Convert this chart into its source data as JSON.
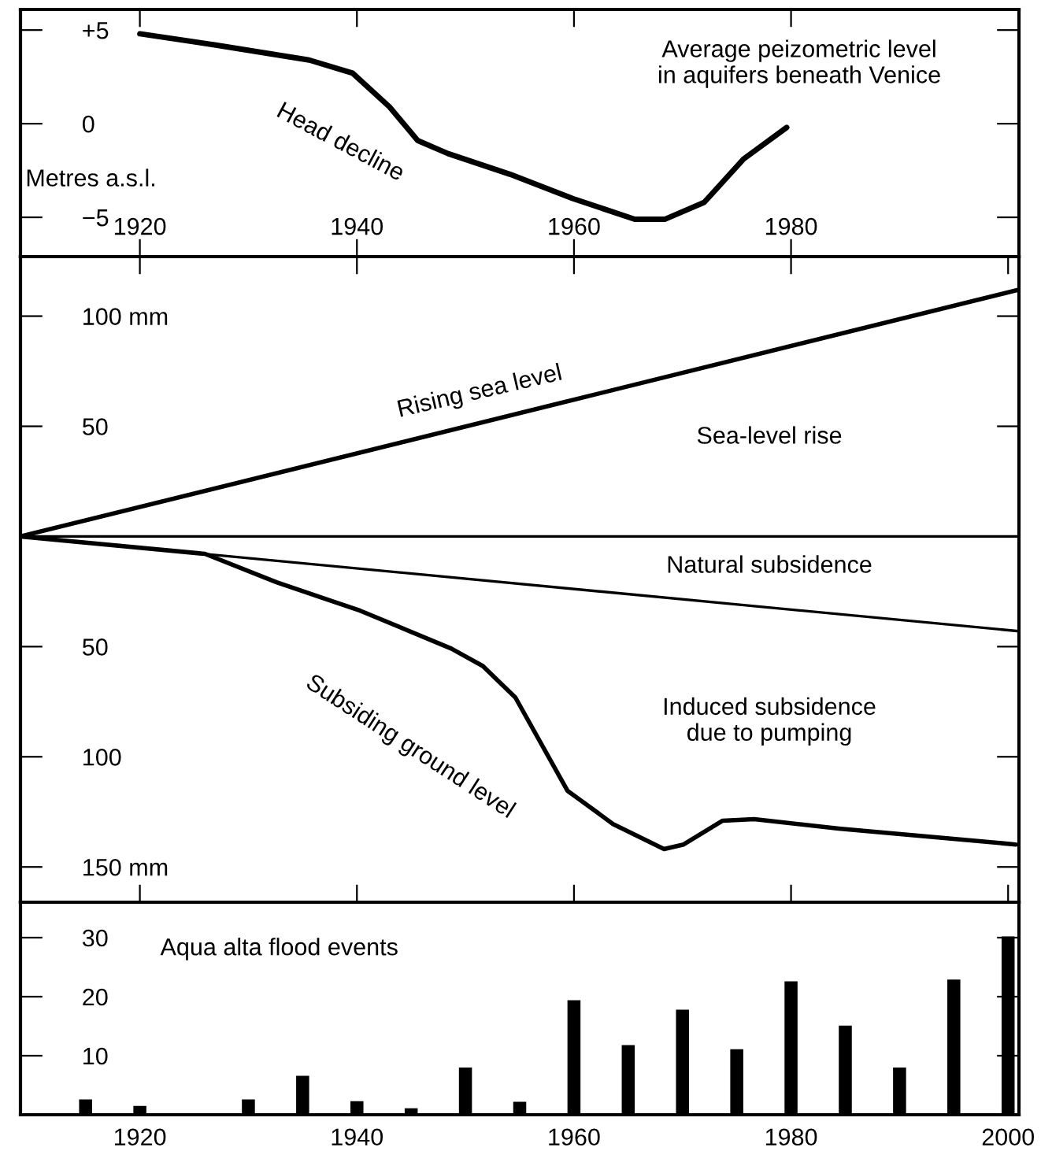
{
  "chart_data": [
    {
      "type": "line",
      "ylabel": "Metres a.s.l.",
      "xlim": [
        1909,
        2001
      ],
      "ylim": [
        -7.1,
        6.1
      ],
      "xticks": [
        1920,
        1940,
        1960,
        1980
      ],
      "yticks": [
        {
          "value": 5,
          "label": "+5"
        },
        0,
        {
          "value": -5,
          "label": "−5"
        }
      ],
      "series": [
        {
          "color": "#000000",
          "x": [
            1920,
            1927,
            1935.6,
            1939.6,
            1943,
            1945.6,
            1948.4,
            1954.1,
            1959.9,
            1965.6,
            1968.4,
            1972,
            1975.6,
            1979.6
          ],
          "values": [
            4.8,
            4.2,
            3.4,
            2.7,
            0.9,
            -0.9,
            -1.6,
            -2.7,
            -4.0,
            -5.1,
            -5.1,
            -4.2,
            -1.9,
            -0.2
          ]
        }
      ],
      "annotations": [
        "Head decline",
        "Average peizometric level\nin aquifers beneath Venice"
      ],
      "tick_labels": "xy"
    },
    {
      "type": "line",
      "xlim": [
        1909,
        2001
      ],
      "ylim": [
        -166,
        127
      ],
      "xticks": [
        1920,
        1940,
        1960,
        1980,
        2000
      ],
      "yticks": [
        {
          "value": 100,
          "label": "100 mm"
        },
        50,
        {
          "value": -50,
          "label": "50"
        },
        {
          "value": -100,
          "label": "100"
        },
        {
          "value": -150,
          "label": "150 mm"
        }
      ],
      "tick_labels": "y",
      "series": [
        {
          "color": "#000000",
          "x": [
            1909,
            2001
          ],
          "values": [
            0,
            112
          ]
        },
        {
          "color": "#000000",
          "x": [
            1909,
            2001
          ],
          "values": [
            0,
            -43
          ]
        },
        {
          "color": "#000000",
          "x": [
            1909,
            1926,
            1932.6,
            1940.3,
            1948.7,
            1951.6,
            1954.6,
            1959.4,
            1963.6,
            1968.3,
            1970.1,
            1973.7,
            1976.6,
            1984.4,
            2000.7
          ],
          "values": [
            0,
            -7.9,
            -20.8,
            -33.7,
            -50.9,
            -58.8,
            -73.1,
            -115.4,
            -130.5,
            -141.9,
            -139.8,
            -129,
            -128.3,
            -132.6,
            -139.8
          ]
        }
      ],
      "ref_lines": [
        {
          "axis": "y",
          "value": 0,
          "color": "#000000"
        }
      ],
      "annotations": [
        "Rising sea level",
        "Sea-level rise",
        "Natural subsidence",
        "Subsiding ground level",
        "Induced subsidence\ndue to pumping"
      ]
    },
    {
      "type": "bar",
      "xlim": [
        1909,
        2001
      ],
      "ylim": [
        0,
        36
      ],
      "xticks": [
        1920,
        1940,
        1960,
        1980,
        2000
      ],
      "yticks": [
        10,
        20,
        30
      ],
      "color": "#000000",
      "x": [
        1915,
        1920,
        1930,
        1935,
        1940,
        1945,
        1950,
        1955,
        1960,
        1965,
        1970,
        1975,
        1980,
        1985,
        1990,
        1995,
        2000
      ],
      "values": [
        2.6,
        1.5,
        2.6,
        6.6,
        2.3,
        1.1,
        8,
        2.2,
        19.4,
        11.8,
        17.8,
        11.1,
        22.6,
        15.1,
        8,
        22.9,
        30.2
      ],
      "annotations": [
        "Aqua alta flood events"
      ]
    }
  ]
}
